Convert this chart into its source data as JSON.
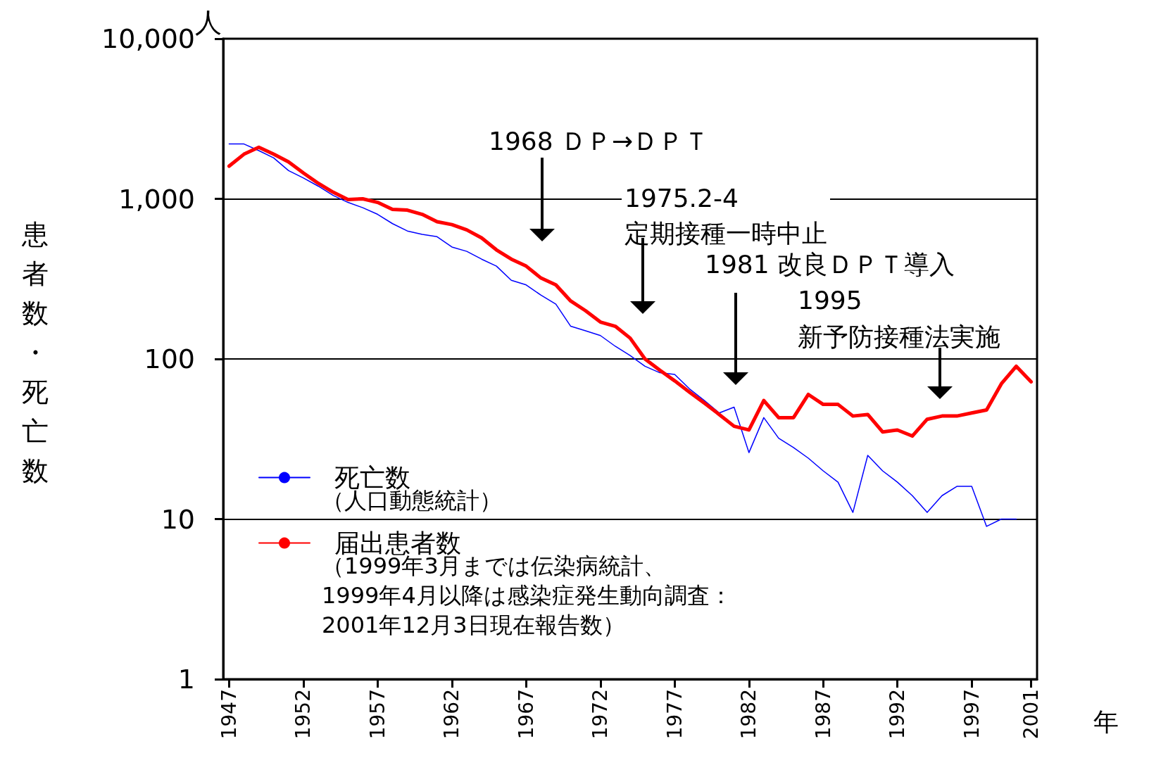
{
  "chart_data": {
    "type": "line",
    "xlabel": "年",
    "ylabel": "患者数・死亡数",
    "x": [
      1947,
      1948,
      1949,
      1950,
      1951,
      1952,
      1953,
      1954,
      1955,
      1956,
      1957,
      1958,
      1959,
      1960,
      1961,
      1962,
      1963,
      1964,
      1965,
      1966,
      1967,
      1968,
      1969,
      1970,
      1971,
      1972,
      1973,
      1974,
      1975,
      1976,
      1977,
      1978,
      1979,
      1980,
      1981,
      1982,
      1983,
      1984,
      1985,
      1986,
      1987,
      1988,
      1989,
      1990,
      1991,
      1992,
      1993,
      1994,
      1995,
      1996,
      1997,
      1998,
      1999,
      2000,
      2001
    ],
    "series": [
      {
        "name": "死亡数",
        "color": "#0000ff",
        "values": [
          2200,
          2200,
          2000,
          1800,
          1500,
          1350,
          1200,
          1050,
          950,
          880,
          800,
          700,
          630,
          600,
          580,
          500,
          470,
          420,
          380,
          310,
          290,
          250,
          220,
          160,
          150,
          140,
          120,
          105,
          90,
          82,
          80,
          65,
          55,
          46,
          50,
          26,
          43,
          32,
          28,
          24,
          20,
          17,
          11,
          25,
          20,
          17,
          14,
          11,
          14,
          16,
          16,
          9,
          10,
          10,
          null
        ]
      },
      {
        "name": "届出患者数",
        "color": "#ff0000",
        "values": [
          1600,
          1900,
          2100,
          1900,
          1700,
          1450,
          1250,
          1100,
          990,
          1000,
          950,
          860,
          850,
          800,
          720,
          690,
          640,
          570,
          480,
          420,
          380,
          320,
          290,
          230,
          200,
          170,
          160,
          135,
          100,
          85,
          73,
          62,
          53,
          45,
          38,
          36,
          55,
          43,
          43,
          60,
          52,
          52,
          44,
          45,
          35,
          36,
          33,
          42,
          44,
          44,
          46,
          48,
          70,
          90,
          72
        ]
      }
    ],
    "log": "y",
    "xlim": [
      1946.6,
      2001.4
    ],
    "xticks": [
      1947,
      1952,
      1957,
      1962,
      1967,
      1972,
      1977,
      1982,
      1987,
      1992,
      1997,
      2001
    ],
    "ylim": [
      1,
      10000
    ],
    "yticks": [
      1,
      10,
      100,
      {
        "value": 1000,
        "label": "1,000"
      },
      {
        "value": 10000,
        "label": "10,000"
      }
    ],
    "grid": "y",
    "legend": "bottom left",
    "marker": "none",
    "line_style": "solid",
    "annotations": [
      "1968 ＤＰ→ＤＰＴ",
      "1975.2-4\n定期接種一時中止",
      "1981 改良ＤＰＴ導入",
      "1995\n新予防接種法実施",
      "人",
      "（人口動態統計）",
      "（1999年3月までは伝染病統計、\n1999年4月以降は感染症発生動向調査：\n2001年12月3日現在報告数）"
    ]
  }
}
